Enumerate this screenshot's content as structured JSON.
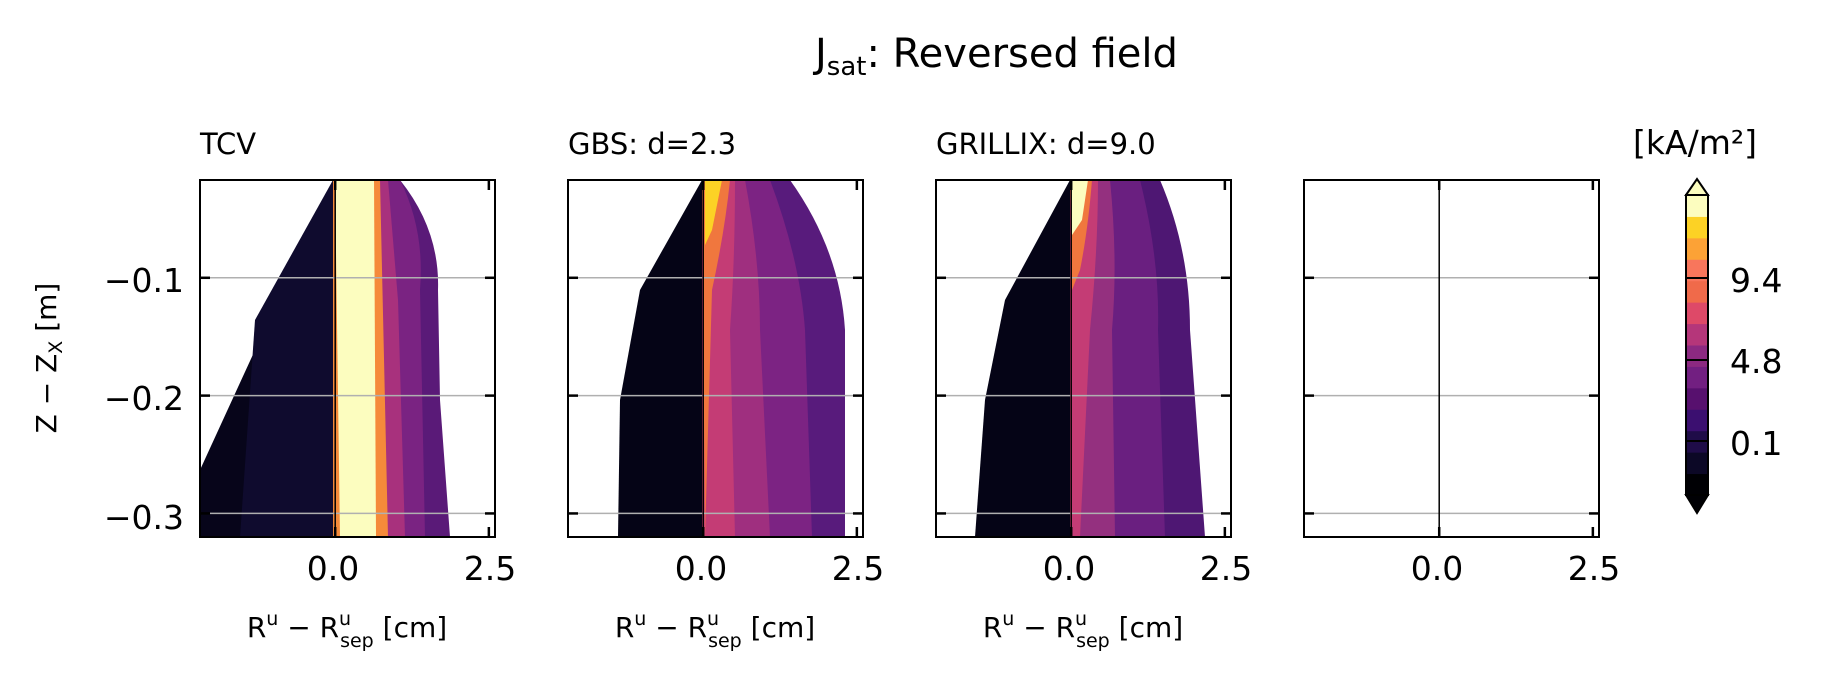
{
  "figure": {
    "title_main": "J",
    "title_sub": "sat",
    "title_rest": ": Reversed field"
  },
  "colors": {
    "colormap": [
      "#000004",
      "#0c0826",
      "#1f0c48",
      "#3b0f70",
      "#57106e",
      "#721f81",
      "#8c2981",
      "#b5367a",
      "#de4968",
      "#f06a4a",
      "#f8765c",
      "#fca236",
      "#fcd225",
      "#fcfdbf"
    ]
  },
  "chart_data": [
    {
      "type": "heatmap",
      "title": "TCV",
      "xlabel": "R^u − R^u_sep [cm]",
      "ylabel": "Z − Z_X [m]",
      "xlim": [
        -2.2,
        2.6
      ],
      "ylim": [
        -0.32,
        -0.017
      ],
      "xticks": [
        "0.0",
        "2.5"
      ],
      "yticks": [
        "−0.1",
        "−0.2",
        "−0.3"
      ],
      "ytick_values": [
        -0.1,
        -0.2,
        -0.3
      ],
      "separatrix_x": 0.0,
      "profile_peak": "near-separatrix band (0.0–0.7 cm) saturated",
      "max_level": "above 9.4"
    },
    {
      "type": "heatmap",
      "title": "GBS: d=2.3",
      "xlabel": "R^u − R^u_sep [cm]",
      "xlim": [
        -2.2,
        2.6
      ],
      "ylim": [
        -0.32,
        -0.017
      ],
      "xticks": [
        "0.0",
        "2.5"
      ],
      "separatrix_x": 0.0,
      "profile_peak": "peak at top near separatrix, decaying downward",
      "max_level": "9.4–11"
    },
    {
      "type": "heatmap",
      "title": "GRILLIX: d=9.0",
      "xlabel": "R^u − R^u_sep [cm]",
      "xlim": [
        -2.2,
        2.6
      ],
      "ylim": [
        -0.32,
        -0.017
      ],
      "xticks": [
        "0.0",
        "2.5"
      ],
      "separatrix_x": 0.0,
      "profile_peak": "thin peak along separatrix at top",
      "max_level": "above 9.4"
    },
    {
      "type": "heatmap",
      "title": "",
      "xlabel": "",
      "xlim": [
        -2.2,
        2.6
      ],
      "ylim": [
        -0.32,
        -0.017
      ],
      "xticks": [
        "0.0",
        "2.5"
      ],
      "separatrix_x": 0.0,
      "note": "empty panel"
    }
  ],
  "colorbar": {
    "label": "[kA/m²]",
    "ticks": [
      "9.4",
      "4.8",
      "0.1"
    ],
    "tick_values": [
      9.4,
      4.8,
      0.1
    ],
    "extend": "both"
  }
}
